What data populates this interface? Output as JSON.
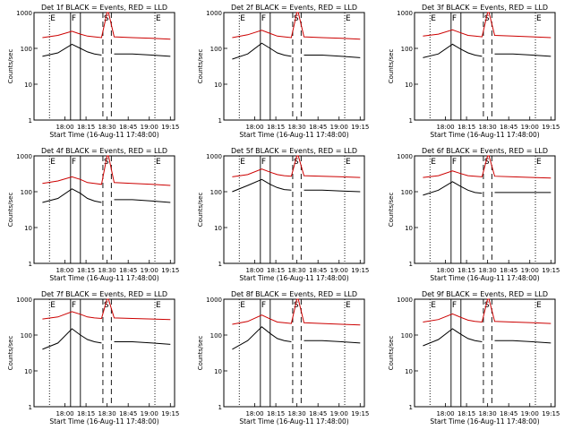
{
  "chart_data": [
    {
      "type": "line",
      "title": "Det 1f BLACK = Events, RED = LLD",
      "xlabel": "Start Time (16-Aug-11 17:48:00)",
      "ylabel": "Counts/sec",
      "scale": "log",
      "ylim": [
        1,
        1000
      ],
      "xticks": [
        "18:00",
        "18:15",
        "18:30",
        "18:45",
        "19:00",
        "19:15"
      ],
      "yticks": [
        "1",
        "10",
        "100",
        "1000"
      ],
      "markers": [
        {
          "label": "E",
          "style": "dotted"
        },
        {
          "label": "F",
          "style": "solid"
        },
        {
          "label": "",
          "style": "solid"
        },
        {
          "label": "S",
          "style": "dashed"
        },
        {
          "label": "",
          "style": "dashed"
        },
        {
          "label": "E",
          "style": "dotted"
        }
      ],
      "series": [
        {
          "color": "#000000",
          "values": [
            60,
            75,
            130,
            100,
            80,
            70,
            65,
            0,
            0,
            70,
            70,
            65,
            60
          ]
        },
        {
          "color": "#cc0000",
          "values": [
            200,
            230,
            300,
            250,
            220,
            210,
            200,
            1000,
            1000,
            210,
            200,
            190,
            180
          ]
        }
      ]
    },
    {
      "type": "line",
      "title": "Det 2f BLACK = Events, RED = LLD",
      "xlabel": "Start Time (16-Aug-11 17:48:00)",
      "ylabel": "Counts/sec",
      "scale": "log",
      "ylim": [
        1,
        1000
      ],
      "xticks": [
        "18:00",
        "18:15",
        "18:30",
        "18:45",
        "19:00",
        "19:15"
      ],
      "yticks": [
        "1",
        "10",
        "100",
        "1000"
      ],
      "markers": [
        {
          "label": "E",
          "style": "dotted"
        },
        {
          "label": "F",
          "style": "solid"
        },
        {
          "label": "",
          "style": "solid"
        },
        {
          "label": "S",
          "style": "dashed"
        },
        {
          "label": "",
          "style": "dashed"
        },
        {
          "label": "E",
          "style": "dotted"
        }
      ],
      "series": [
        {
          "color": "#000000",
          "values": [
            50,
            70,
            140,
            100,
            75,
            65,
            60,
            0,
            0,
            65,
            65,
            60,
            55
          ]
        },
        {
          "color": "#cc0000",
          "values": [
            200,
            240,
            320,
            260,
            220,
            210,
            200,
            1000,
            1000,
            210,
            200,
            190,
            180
          ]
        }
      ]
    },
    {
      "type": "line",
      "title": "Det 3f BLACK = Events, RED = LLD",
      "xlabel": "Start Time (16-Aug-11 17:48:00)",
      "ylabel": "Counts/sec",
      "scale": "log",
      "ylim": [
        1,
        1000
      ],
      "xticks": [
        "18:00",
        "18:15",
        "18:30",
        "18:45",
        "19:00",
        "19:15"
      ],
      "yticks": [
        "1",
        "10",
        "100",
        "1000"
      ],
      "markers": [
        {
          "label": "E",
          "style": "dotted"
        },
        {
          "label": "F",
          "style": "solid"
        },
        {
          "label": "",
          "style": "solid"
        },
        {
          "label": "S",
          "style": "dashed"
        },
        {
          "label": "",
          "style": "dashed"
        },
        {
          "label": "E",
          "style": "dotted"
        }
      ],
      "series": [
        {
          "color": "#000000",
          "values": [
            55,
            70,
            130,
            95,
            75,
            65,
            60,
            0,
            0,
            70,
            70,
            65,
            60
          ]
        },
        {
          "color": "#cc0000",
          "values": [
            220,
            250,
            330,
            270,
            230,
            220,
            210,
            1000,
            1000,
            230,
            220,
            210,
            200
          ]
        }
      ]
    },
    {
      "type": "line",
      "title": "Det 4f BLACK = Events, RED = LLD",
      "xlabel": "Start Time (16-Aug-11 17:48:00)",
      "ylabel": "Counts/sec",
      "scale": "log",
      "ylim": [
        1,
        1000
      ],
      "xticks": [
        "18:00",
        "18:15",
        "18:30",
        "18:45",
        "19:00",
        "19:15"
      ],
      "yticks": [
        "1",
        "10",
        "100",
        "1000"
      ],
      "markers": [
        {
          "label": "E",
          "style": "dotted"
        },
        {
          "label": "F",
          "style": "solid"
        },
        {
          "label": "",
          "style": "solid"
        },
        {
          "label": "S",
          "style": "dashed"
        },
        {
          "label": "",
          "style": "dashed"
        },
        {
          "label": "E",
          "style": "dotted"
        }
      ],
      "series": [
        {
          "color": "#000000",
          "values": [
            50,
            65,
            120,
            90,
            65,
            55,
            50,
            0,
            0,
            60,
            60,
            55,
            50
          ]
        },
        {
          "color": "#cc0000",
          "values": [
            170,
            200,
            260,
            220,
            180,
            170,
            160,
            1000,
            1000,
            180,
            170,
            160,
            150
          ]
        }
      ]
    },
    {
      "type": "line",
      "title": "Det 5f BLACK = Events, RED = LLD",
      "xlabel": "Start Time (16-Aug-11 17:48:00)",
      "ylabel": "Counts/sec",
      "scale": "log",
      "ylim": [
        1,
        1000
      ],
      "xticks": [
        "18:00",
        "18:15",
        "18:30",
        "18:45",
        "19:00",
        "19:15"
      ],
      "yticks": [
        "1",
        "10",
        "100",
        "1000"
      ],
      "markers": [
        {
          "label": "E",
          "style": "dotted"
        },
        {
          "label": "F",
          "style": "solid"
        },
        {
          "label": "",
          "style": "solid"
        },
        {
          "label": "S",
          "style": "dashed"
        },
        {
          "label": "",
          "style": "dashed"
        },
        {
          "label": "E",
          "style": "dotted"
        }
      ],
      "series": [
        {
          "color": "#000000",
          "values": [
            100,
            150,
            220,
            160,
            130,
            115,
            110,
            0,
            0,
            110,
            110,
            105,
            100
          ]
        },
        {
          "color": "#cc0000",
          "values": [
            260,
            300,
            430,
            350,
            300,
            280,
            270,
            1000,
            1000,
            280,
            270,
            260,
            250
          ]
        }
      ]
    },
    {
      "type": "line",
      "title": "Det 6f BLACK = Events, RED = LLD",
      "xlabel": "Start Time (16-Aug-11 17:48:00)",
      "ylabel": "Counts/sec",
      "scale": "log",
      "ylim": [
        1,
        1000
      ],
      "xticks": [
        "18:00",
        "18:15",
        "18:30",
        "18:45",
        "19:00",
        "19:15"
      ],
      "yticks": [
        "1",
        "10",
        "100",
        "1000"
      ],
      "markers": [
        {
          "label": "E",
          "style": "dotted"
        },
        {
          "label": "F",
          "style": "solid"
        },
        {
          "label": "",
          "style": "solid"
        },
        {
          "label": "S",
          "style": "dashed"
        },
        {
          "label": "",
          "style": "dashed"
        },
        {
          "label": "E",
          "style": "dotted"
        }
      ],
      "series": [
        {
          "color": "#000000",
          "values": [
            80,
            110,
            190,
            140,
            110,
            95,
            90,
            0,
            0,
            95,
            95,
            95,
            95
          ]
        },
        {
          "color": "#cc0000",
          "values": [
            250,
            280,
            380,
            320,
            280,
            270,
            260,
            1000,
            1000,
            270,
            260,
            250,
            240
          ]
        }
      ]
    },
    {
      "type": "line",
      "title": "Det 7f BLACK = Events, RED = LLD",
      "xlabel": "Start Time (16-Aug-11 17:48:00)",
      "ylabel": "Counts/sec",
      "scale": "log",
      "ylim": [
        1,
        1000
      ],
      "xticks": [
        "18:00",
        "18:15",
        "18:30",
        "18:45",
        "19:00",
        "19:15"
      ],
      "yticks": [
        "1",
        "10",
        "100",
        "1000"
      ],
      "markers": [
        {
          "label": "E",
          "style": "dotted"
        },
        {
          "label": "F",
          "style": "solid"
        },
        {
          "label": "",
          "style": "solid"
        },
        {
          "label": "S",
          "style": "dashed"
        },
        {
          "label": "",
          "style": "dashed"
        },
        {
          "label": "E",
          "style": "dotted"
        }
      ],
      "series": [
        {
          "color": "#000000",
          "values": [
            40,
            60,
            150,
            100,
            75,
            65,
            60,
            0,
            0,
            65,
            65,
            60,
            55
          ]
        },
        {
          "color": "#cc0000",
          "values": [
            280,
            320,
            450,
            380,
            320,
            300,
            290,
            1000,
            1000,
            300,
            290,
            280,
            270
          ]
        }
      ]
    },
    {
      "type": "line",
      "title": "Det 8f BLACK = Events, RED = LLD",
      "xlabel": "Start Time (16-Aug-11 17:48:00)",
      "ylabel": "Counts/sec",
      "scale": "log",
      "ylim": [
        1,
        1000
      ],
      "xticks": [
        "18:00",
        "18:15",
        "18:30",
        "18:45",
        "19:00",
        "19:15"
      ],
      "yticks": [
        "1",
        "10",
        "100",
        "1000"
      ],
      "markers": [
        {
          "label": "E",
          "style": "dotted"
        },
        {
          "label": "F",
          "style": "solid"
        },
        {
          "label": "",
          "style": "solid"
        },
        {
          "label": "S",
          "style": "dashed"
        },
        {
          "label": "",
          "style": "dashed"
        },
        {
          "label": "E",
          "style": "dotted"
        }
      ],
      "series": [
        {
          "color": "#000000",
          "values": [
            40,
            70,
            170,
            110,
            80,
            70,
            65,
            0,
            0,
            70,
            70,
            65,
            60
          ]
        },
        {
          "color": "#cc0000",
          "values": [
            200,
            240,
            360,
            280,
            230,
            220,
            210,
            1000,
            1000,
            220,
            210,
            200,
            190
          ]
        }
      ]
    },
    {
      "type": "line",
      "title": "Det 9f BLACK = Events, RED = LLD",
      "xlabel": "Start Time (16-Aug-11 17:48:00)",
      "ylabel": "Counts/sec",
      "scale": "log",
      "ylim": [
        1,
        1000
      ],
      "xticks": [
        "18:00",
        "18:15",
        "18:30",
        "18:45",
        "19:00",
        "19:15"
      ],
      "yticks": [
        "1",
        "10",
        "100",
        "1000"
      ],
      "markers": [
        {
          "label": "E",
          "style": "dotted"
        },
        {
          "label": "F",
          "style": "solid"
        },
        {
          "label": "",
          "style": "solid"
        },
        {
          "label": "S",
          "style": "dashed"
        },
        {
          "label": "",
          "style": "dashed"
        },
        {
          "label": "E",
          "style": "dotted"
        }
      ],
      "series": [
        {
          "color": "#000000",
          "values": [
            50,
            75,
            150,
            105,
            80,
            70,
            65,
            0,
            0,
            70,
            70,
            65,
            60
          ]
        },
        {
          "color": "#cc0000",
          "values": [
            230,
            270,
            390,
            310,
            260,
            240,
            230,
            1000,
            1000,
            240,
            230,
            220,
            210
          ]
        }
      ]
    }
  ]
}
